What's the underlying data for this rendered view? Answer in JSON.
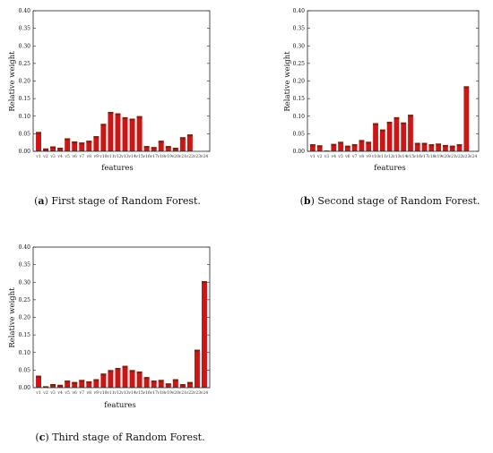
{
  "colors": {
    "bar_fill": "#cc1616",
    "bar_cap": "#6b2a1a",
    "axis": "#222222"
  },
  "chart_data": [
    {
      "type": "bar",
      "caption_label": "a",
      "caption_text": "First stage of Random Forest.",
      "xlabel": "features",
      "ylabel": "Relative weight",
      "ylim": [
        0,
        0.4
      ],
      "yticks": [
        "0.00",
        "0.05",
        "0.10",
        "0.15",
        "0.20",
        "0.25",
        "0.30",
        "0.35",
        "0.40"
      ],
      "categories": [
        "v1",
        "v2",
        "v3",
        "v4",
        "v5",
        "v6",
        "v7",
        "v8",
        "v9",
        "v10",
        "v11",
        "v12",
        "v13",
        "v14",
        "v15",
        "v16",
        "v17",
        "v18",
        "v19",
        "v20",
        "v21",
        "v22",
        "v23",
        "v24"
      ],
      "values": [
        0.055,
        0.008,
        0.014,
        0.01,
        0.037,
        0.028,
        0.025,
        0.03,
        0.043,
        0.078,
        0.112,
        0.108,
        0.097,
        0.093,
        0.1,
        0.015,
        0.012,
        0.03,
        0.015,
        0.01,
        0.04,
        0.048,
        0.0,
        0.0
      ],
      "grid": false
    },
    {
      "type": "bar",
      "caption_label": "b",
      "caption_text": "Second stage of Random Forest.",
      "xlabel": "features",
      "ylabel": "Relative weight",
      "ylim": [
        0,
        0.4
      ],
      "yticks": [
        "0.00",
        "0.05",
        "0.10",
        "0.15",
        "0.20",
        "0.25",
        "0.30",
        "0.35",
        "0.40"
      ],
      "categories": [
        "v1",
        "v2",
        "v3",
        "v4",
        "v5",
        "v6",
        "v7",
        "v8",
        "v9",
        "v10",
        "v11",
        "v12",
        "v13",
        "v14",
        "v15",
        "v16",
        "v17",
        "v18",
        "v19",
        "v20",
        "v21",
        "v22",
        "v23",
        "v24"
      ],
      "values": [
        0.02,
        0.017,
        0.002,
        0.021,
        0.027,
        0.016,
        0.02,
        0.032,
        0.027,
        0.08,
        0.062,
        0.084,
        0.097,
        0.082,
        0.104,
        0.024,
        0.024,
        0.02,
        0.022,
        0.018,
        0.016,
        0.02,
        0.185,
        0.0
      ],
      "grid": false
    },
    {
      "type": "bar",
      "caption_label": "c",
      "caption_text": "Third stage of Random Forest.",
      "xlabel": "features",
      "ylabel": "Relative weight",
      "ylim": [
        0,
        0.4
      ],
      "yticks": [
        "0.00",
        "0.05",
        "0.10",
        "0.15",
        "0.20",
        "0.25",
        "0.30",
        "0.35",
        "0.40"
      ],
      "categories": [
        "v1",
        "v2",
        "v3",
        "v4",
        "v5",
        "v6",
        "v7",
        "v8",
        "v9",
        "v10",
        "v11",
        "v12",
        "v13",
        "v14",
        "v15",
        "v16",
        "v17",
        "v18",
        "v19",
        "v20",
        "v21",
        "v22",
        "v23",
        "v24"
      ],
      "values": [
        0.034,
        0.004,
        0.01,
        0.008,
        0.02,
        0.016,
        0.022,
        0.018,
        0.024,
        0.04,
        0.05,
        0.056,
        0.062,
        0.05,
        0.046,
        0.03,
        0.02,
        0.022,
        0.012,
        0.024,
        0.01,
        0.016,
        0.108,
        0.303
      ],
      "grid": false
    }
  ]
}
